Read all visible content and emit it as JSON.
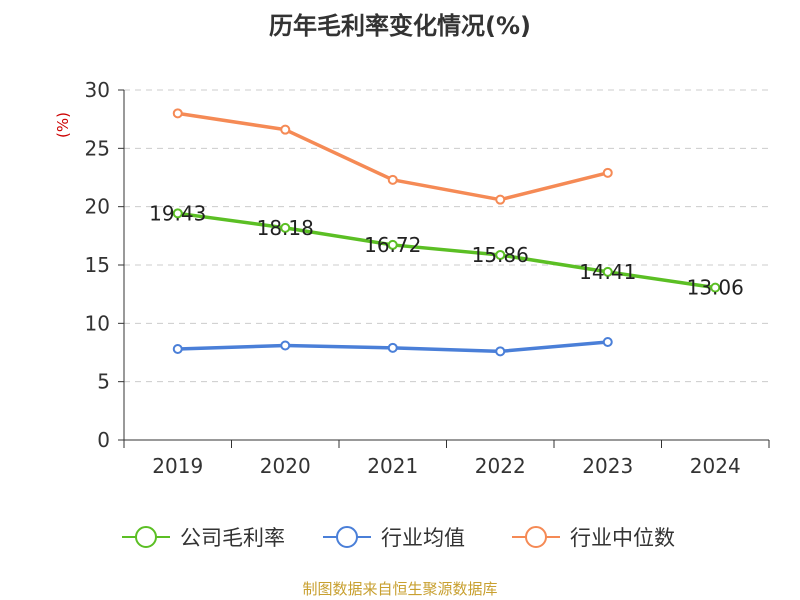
{
  "title": "历年毛利率变化情况(%)",
  "source": "制图数据来自恒生聚源数据库",
  "colors": {
    "company": "#5BBF24",
    "industry_avg": "#4A7FD8",
    "industry_median": "#F58A55",
    "axis": "#333333",
    "grid": "#cccccc",
    "ylabel": "#cc0000",
    "source": "#c8a030"
  },
  "chart_data": {
    "type": "line",
    "title": "历年毛利率变化情况(%)",
    "xlabel": "",
    "ylabel": "(%)",
    "categories": [
      "2019",
      "2020",
      "2021",
      "2022",
      "2023",
      "2024"
    ],
    "ylim": [
      0,
      30
    ],
    "yticks": [
      0,
      5,
      10,
      15,
      20,
      25,
      30
    ],
    "grid": true,
    "legend_position": "bottom",
    "series": [
      {
        "name": "公司毛利率",
        "values": [
          19.43,
          18.18,
          16.72,
          15.86,
          14.41,
          13.06
        ],
        "labels": [
          "19.43",
          "18.18",
          "16.72",
          "15.86",
          "14.41",
          "13.06"
        ]
      },
      {
        "name": "行业均值",
        "values": [
          7.8,
          8.1,
          7.9,
          7.6,
          8.4,
          null
        ]
      },
      {
        "name": "行业中位数",
        "values": [
          28.0,
          26.6,
          22.3,
          20.6,
          22.9,
          null
        ]
      }
    ]
  }
}
